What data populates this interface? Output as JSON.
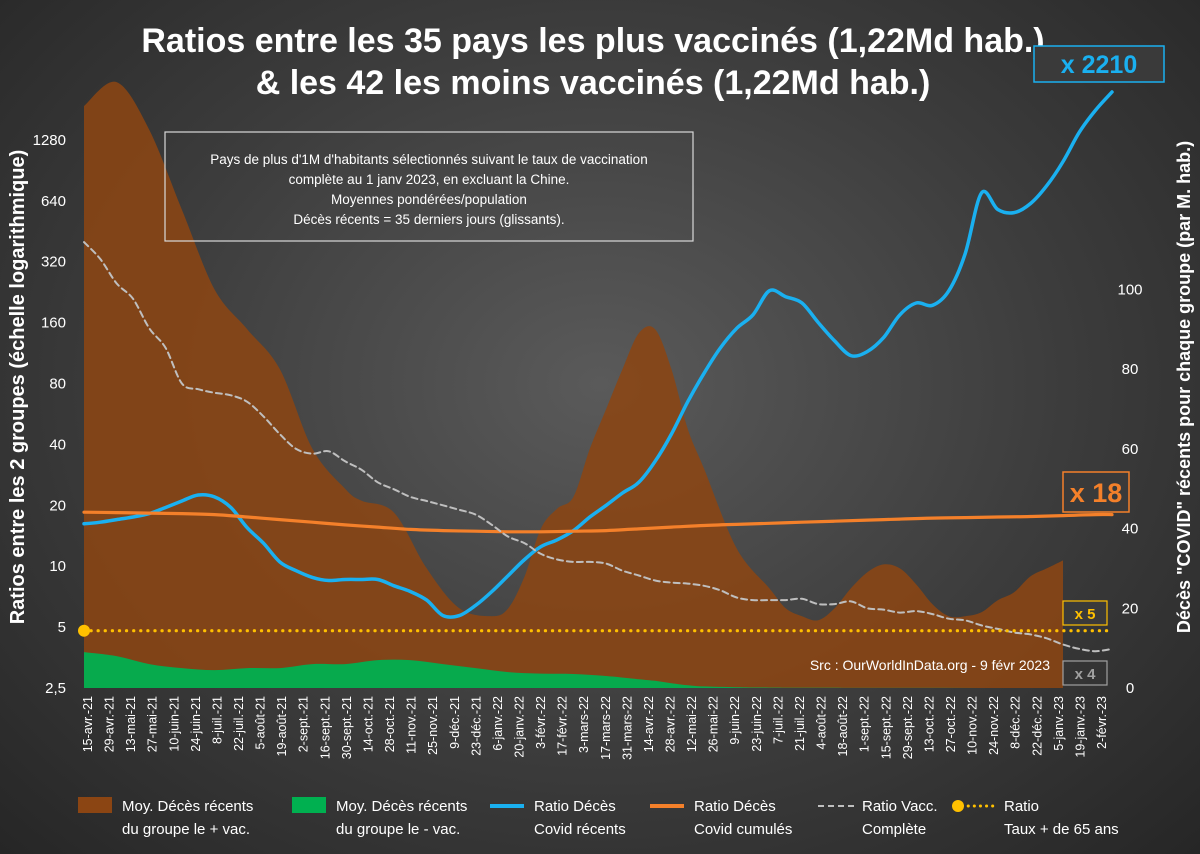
{
  "chart_data": {
    "type": "line",
    "title_line1": "Ratios entre les 35 pays les plus vaccinés (1,22Md hab.)",
    "title_line2": "& les 42 les moins vaccinés (1,22Md hab.)",
    "ylabel_left": "Ratios entre les 2 groupes (échelle logarithmique)",
    "ylabel_right": "Décès \"COVID\" récents pour chaque groupe (par M. hab.)",
    "y_left_scale": "log2",
    "y_left_range": [
      2.5,
      1800
    ],
    "y_left_ticks": [
      {
        "value": 2.5,
        "label": "2,5"
      },
      {
        "value": 5,
        "label": "5"
      },
      {
        "value": 10,
        "label": "10"
      },
      {
        "value": 20,
        "label": "20"
      },
      {
        "value": 40,
        "label": "40"
      },
      {
        "value": 80,
        "label": "80"
      },
      {
        "value": 160,
        "label": "160"
      },
      {
        "value": 320,
        "label": "320"
      },
      {
        "value": 640,
        "label": "640"
      },
      {
        "value": 1280,
        "label": "1280"
      }
    ],
    "y_right_range": [
      0,
      145
    ],
    "y_right_ticks": [
      0,
      20,
      40,
      60,
      80,
      100
    ],
    "x_tick_labels": [
      "15-avr.-21",
      "29-avr.-21",
      "13-mai-21",
      "27-mai-21",
      "10-juin-21",
      "24-juin-21",
      "8-juil.-21",
      "22-juil.-21",
      "5-août-21",
      "19-août-21",
      "2-sept.-21",
      "16-sept.-21",
      "30-sept.-21",
      "14-oct.-21",
      "28-oct.-21",
      "11-nov.-21",
      "25-nov.-21",
      "9-déc.-21",
      "23-déc.-21",
      "6-janv.-22",
      "20-janv.-22",
      "3-févr.-22",
      "17-févr.-22",
      "3-mars-22",
      "17-mars-22",
      "31-mars-22",
      "14-avr.-22",
      "28-avr.-22",
      "12-mai-22",
      "26-mai-22",
      "9-juin-22",
      "23-juin-22",
      "7-juil.-22",
      "21-juil.-22",
      "4-août-22",
      "18-août-22",
      "1-sept.-22",
      "15-sept.-22",
      "29-sept.-22",
      "13-oct.-22",
      "27-oct.-22",
      "10-nov.-22",
      "24-nov.-22",
      "8-déc.-22",
      "22-déc.-22",
      "5-janv.-23",
      "19-janv.-23",
      "2-févr.-23"
    ],
    "series": [
      {
        "name": "Moy. Décès récents du groupe le + vac.",
        "axis": "right",
        "style": "area",
        "color": "#8b4513",
        "points": [
          [
            0,
            146
          ],
          [
            2,
            152
          ],
          [
            4,
            140
          ],
          [
            6,
            120
          ],
          [
            8,
            100
          ],
          [
            10,
            90
          ],
          [
            12,
            80
          ],
          [
            14,
            60
          ],
          [
            16,
            50
          ],
          [
            17,
            47
          ],
          [
            19,
            44
          ],
          [
            21,
            30
          ],
          [
            23,
            20
          ],
          [
            25,
            18
          ],
          [
            26,
            20
          ],
          [
            27,
            28
          ],
          [
            28,
            40
          ],
          [
            29,
            45
          ],
          [
            30,
            48
          ],
          [
            31,
            60
          ],
          [
            32,
            70
          ],
          [
            33,
            80
          ],
          [
            34,
            89
          ],
          [
            35,
            90
          ],
          [
            36,
            80
          ],
          [
            37,
            65
          ],
          [
            38,
            55
          ],
          [
            40,
            35
          ],
          [
            42,
            25
          ],
          [
            43,
            20
          ],
          [
            44,
            18
          ],
          [
            45,
            17
          ],
          [
            46,
            20
          ],
          [
            47,
            25
          ],
          [
            48,
            29
          ],
          [
            49,
            31
          ],
          [
            50,
            30
          ],
          [
            51,
            26
          ],
          [
            52,
            21
          ],
          [
            53,
            18
          ],
          [
            54,
            18
          ],
          [
            55,
            19
          ],
          [
            56,
            22
          ],
          [
            57,
            24
          ],
          [
            58,
            28
          ],
          [
            59,
            30
          ],
          [
            60,
            32
          ]
        ]
      },
      {
        "name": "Moy. Décès récents du groupe le - vac.",
        "axis": "right",
        "style": "area",
        "color": "#00b050",
        "points": [
          [
            0,
            9
          ],
          [
            2,
            8
          ],
          [
            4,
            6
          ],
          [
            6,
            5
          ],
          [
            8,
            4.5
          ],
          [
            10,
            5
          ],
          [
            12,
            5
          ],
          [
            14,
            6
          ],
          [
            16,
            6
          ],
          [
            18,
            7
          ],
          [
            20,
            7
          ],
          [
            22,
            6
          ],
          [
            24,
            5
          ],
          [
            26,
            4
          ],
          [
            28,
            3.6
          ],
          [
            30,
            3.5
          ],
          [
            32,
            3
          ],
          [
            34,
            2.2
          ],
          [
            35,
            1.8
          ],
          [
            36,
            1.2
          ],
          [
            37,
            0.7
          ],
          [
            38,
            0.4
          ],
          [
            40,
            0.2
          ],
          [
            42,
            0.1
          ],
          [
            45,
            0.05
          ],
          [
            50,
            0.02
          ],
          [
            55,
            0.01
          ],
          [
            60,
            0.01
          ]
        ]
      },
      {
        "name": "Ratio Décès Covid récents",
        "axis": "left",
        "style": "line",
        "color": "#1ab0f0",
        "points": [
          [
            0,
            16.2
          ],
          [
            1,
            16.5
          ],
          [
            2,
            17.0
          ],
          [
            3,
            17.5
          ],
          [
            4,
            18.2
          ],
          [
            5,
            19.5
          ],
          [
            6,
            21.0
          ],
          [
            7,
            22.5
          ],
          [
            8,
            22.0
          ],
          [
            9,
            19.5
          ],
          [
            10,
            15.5
          ],
          [
            11,
            13
          ],
          [
            12,
            10.5
          ],
          [
            13,
            9.5
          ],
          [
            14,
            8.8
          ],
          [
            15,
            8.5
          ],
          [
            16,
            8.6
          ],
          [
            17,
            8.6
          ],
          [
            18,
            8.6
          ],
          [
            19,
            8.0
          ],
          [
            20,
            7.5
          ],
          [
            21,
            6.8
          ],
          [
            22,
            5.7
          ],
          [
            23,
            5.7
          ],
          [
            24,
            6.4
          ],
          [
            25,
            7.5
          ],
          [
            26,
            9.0
          ],
          [
            27,
            10.8
          ],
          [
            28,
            12.5
          ],
          [
            29,
            13.5
          ],
          [
            30,
            15.0
          ],
          [
            31,
            17.5
          ],
          [
            32,
            20.0
          ],
          [
            33,
            23.0
          ],
          [
            34,
            26.0
          ],
          [
            35,
            33.0
          ],
          [
            36,
            45.0
          ],
          [
            37,
            65.0
          ],
          [
            38,
            90.0
          ],
          [
            39,
            120.0
          ],
          [
            40,
            150.0
          ],
          [
            41,
            175.0
          ],
          [
            42,
            230.0
          ],
          [
            43,
            215.0
          ],
          [
            44,
            200.0
          ],
          [
            45,
            160.0
          ],
          [
            46,
            130.0
          ],
          [
            47,
            110.0
          ],
          [
            48,
            115.0
          ],
          [
            49,
            135.0
          ],
          [
            50,
            175.0
          ],
          [
            51,
            200.0
          ],
          [
            52,
            195.0
          ],
          [
            53,
            230.0
          ],
          [
            54,
            350.0
          ],
          [
            55,
            700.0
          ],
          [
            56,
            580.0
          ],
          [
            57,
            560.0
          ],
          [
            58,
            620.0
          ],
          [
            59,
            760.0
          ],
          [
            60,
            1000.0
          ],
          [
            61,
            1400.0
          ],
          [
            62,
            1800.0
          ],
          [
            63,
            2210.0
          ]
        ]
      },
      {
        "name": "Ratio Décès Covid cumulés",
        "axis": "left",
        "style": "line",
        "color": "#f4802a",
        "points": [
          [
            0,
            18.5
          ],
          [
            2,
            18.4
          ],
          [
            4,
            18.3
          ],
          [
            6,
            18.2
          ],
          [
            8,
            18.0
          ],
          [
            10,
            17.5
          ],
          [
            12,
            17.0
          ],
          [
            14,
            16.5
          ],
          [
            16,
            16.0
          ],
          [
            18,
            15.6
          ],
          [
            20,
            15.2
          ],
          [
            22,
            15.0
          ],
          [
            24,
            14.9
          ],
          [
            26,
            14.8
          ],
          [
            28,
            14.8
          ],
          [
            30,
            14.9
          ],
          [
            32,
            15.0
          ],
          [
            34,
            15.3
          ],
          [
            36,
            15.6
          ],
          [
            38,
            15.9
          ],
          [
            40,
            16.1
          ],
          [
            42,
            16.3
          ],
          [
            44,
            16.5
          ],
          [
            46,
            16.7
          ],
          [
            48,
            16.9
          ],
          [
            50,
            17.1
          ],
          [
            52,
            17.3
          ],
          [
            54,
            17.4
          ],
          [
            56,
            17.5
          ],
          [
            58,
            17.6
          ],
          [
            60,
            17.8
          ],
          [
            62,
            18.0
          ],
          [
            63,
            18.0
          ]
        ]
      },
      {
        "name": "Ratio Vacc. Complète",
        "axis": "left",
        "style": "dashed",
        "color": "#bfbfbf",
        "points": [
          [
            0,
            400
          ],
          [
            1,
            330
          ],
          [
            2,
            250
          ],
          [
            3,
            210
          ],
          [
            4,
            150
          ],
          [
            5,
            120
          ],
          [
            6,
            80
          ],
          [
            7,
            75
          ],
          [
            8,
            72
          ],
          [
            9,
            70
          ],
          [
            10,
            65
          ],
          [
            11,
            55
          ],
          [
            12,
            45
          ],
          [
            13,
            38
          ],
          [
            14,
            36
          ],
          [
            15,
            37
          ],
          [
            16,
            33
          ],
          [
            17,
            30
          ],
          [
            18,
            26
          ],
          [
            19,
            24
          ],
          [
            20,
            22
          ],
          [
            21,
            21
          ],
          [
            22,
            20
          ],
          [
            23,
            19
          ],
          [
            24,
            18
          ],
          [
            25,
            16
          ],
          [
            26,
            14
          ],
          [
            27,
            13
          ],
          [
            28,
            11.5
          ],
          [
            29,
            10.8
          ],
          [
            30,
            10.5
          ],
          [
            31,
            10.5
          ],
          [
            32,
            10.3
          ],
          [
            33,
            9.5
          ],
          [
            34,
            9
          ],
          [
            35,
            8.5
          ],
          [
            36,
            8.3
          ],
          [
            37,
            8.2
          ],
          [
            38,
            8.0
          ],
          [
            39,
            7.6
          ],
          [
            40,
            7.0
          ],
          [
            41,
            6.8
          ],
          [
            42,
            6.8
          ],
          [
            43,
            6.8
          ],
          [
            44,
            6.9
          ],
          [
            45,
            6.5
          ],
          [
            46,
            6.5
          ],
          [
            47,
            6.7
          ],
          [
            48,
            6.2
          ],
          [
            49,
            6.1
          ],
          [
            50,
            5.9
          ],
          [
            51,
            6.0
          ],
          [
            52,
            5.8
          ],
          [
            53,
            5.5
          ],
          [
            54,
            5.4
          ],
          [
            55,
            5.1
          ],
          [
            56,
            4.9
          ],
          [
            57,
            4.7
          ],
          [
            58,
            4.6
          ],
          [
            59,
            4.4
          ],
          [
            60,
            4.1
          ],
          [
            61,
            3.9
          ],
          [
            62,
            3.8
          ],
          [
            63,
            3.9
          ]
        ]
      },
      {
        "name": "Ratio Taux + de 65 ans",
        "axis": "left",
        "style": "dotted",
        "color": "#ffc000",
        "points": [
          [
            0,
            4.8
          ],
          [
            63,
            4.8
          ]
        ]
      }
    ],
    "legend": [
      {
        "line1": "Moy. Décès récents",
        "line2": "du groupe le + vac.",
        "marker": "box",
        "color": "#8b4513"
      },
      {
        "line1": "Moy. Décès récents",
        "line2": "du groupe le - vac.",
        "marker": "box",
        "color": "#00b050"
      },
      {
        "line1": "Ratio Décès",
        "line2": "Covid récents",
        "marker": "line",
        "color": "#1ab0f0"
      },
      {
        "line1": "Ratio Décès",
        "line2": "Covid cumulés",
        "marker": "line",
        "color": "#f4802a"
      },
      {
        "line1": "Ratio Vacc.",
        "line2": "Complète",
        "marker": "dash",
        "color": "#bfbfbf"
      },
      {
        "line1": "Ratio",
        "line2": "Taux + de 65 ans",
        "marker": "dot",
        "color": "#ffc000"
      }
    ],
    "annotations": {
      "x2210": "x 2210",
      "x18": "x 18",
      "x5": "x 5",
      "x4": "x 4",
      "note_lines": [
        "Pays de plus d'1M d'habitants sélectionnés suivant le taux de vaccination",
        "complète au 1 janv 2023, en excluant la Chine.",
        "Moyennes pondérées/population",
        "Décès récents = 35 derniers jours (glissants)."
      ],
      "source": "Src : OurWorldInData.org - 9 févr 2023"
    }
  }
}
